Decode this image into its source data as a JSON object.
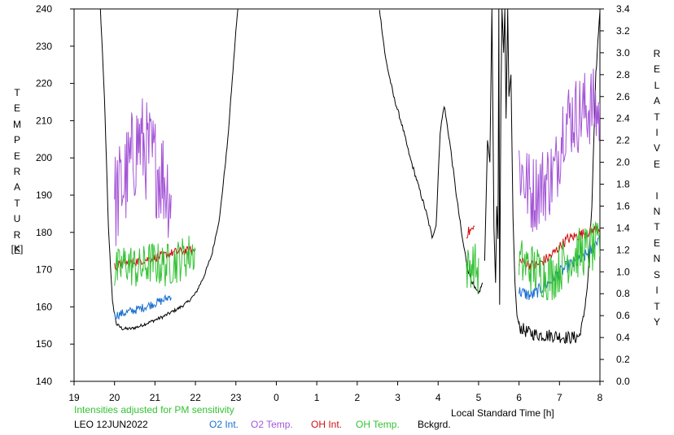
{
  "chart_data": {
    "type": "line",
    "xlabel": "Local Standard Time [h]",
    "ylabel_left": "TEMPERATURE",
    "ylabel_left_unit": "[K]",
    "ylabel_right": "RELATIVE INTENSITY",
    "x_ticks": [
      "19",
      "20",
      "21",
      "22",
      "23",
      "0",
      "1",
      "2",
      "3",
      "4",
      "5",
      "6",
      "7",
      "8"
    ],
    "y_left_ticks": [
      "140",
      "150",
      "160",
      "170",
      "180",
      "190",
      "200",
      "210",
      "220",
      "230",
      "240"
    ],
    "y_right_ticks": [
      "0.0",
      "0.2",
      "0.4",
      "0.6",
      "0.8",
      "1.0",
      "1.2",
      "1.4",
      "1.6",
      "1.8",
      "2.0",
      "2.2",
      "2.4",
      "2.6",
      "2.8",
      "3.0",
      "3.2",
      "3.4"
    ],
    "xlim": [
      19,
      32
    ],
    "ylim_left": [
      140,
      240
    ],
    "ylim_right": [
      0,
      3.4
    ],
    "grid": false,
    "notes": {
      "sensitivity_note": "Intensities adjusted for PM sensitivity",
      "site_date": "LEO 12JUN2022"
    },
    "legend": [
      {
        "label": "O2 Int.",
        "color": "#1a6fd0"
      },
      {
        "label": "O2 Temp.",
        "color": "#a455d6"
      },
      {
        "label": "OH Int.",
        "color": "#d01010"
      },
      {
        "label": "OH Temp.",
        "color": "#33c233"
      },
      {
        "label": "Bckgrd.",
        "color": "#000000"
      }
    ],
    "series": [
      {
        "key": "bckgrd",
        "axis": "right",
        "color": "#000000",
        "noise": 0.015,
        "x": [
          19.65,
          19.75,
          19.85,
          19.95,
          20.05,
          20.2,
          20.4,
          20.6,
          20.8,
          21.0,
          21.2,
          21.4,
          21.6,
          21.8,
          22.0,
          22.2,
          22.4,
          22.6,
          22.8,
          23.0,
          23.05
        ],
        "y": [
          3.4,
          2.6,
          1.4,
          0.72,
          0.52,
          0.48,
          0.48,
          0.5,
          0.53,
          0.56,
          0.59,
          0.63,
          0.67,
          0.72,
          0.8,
          0.95,
          1.15,
          1.5,
          2.2,
          3.2,
          3.4
        ]
      },
      {
        "key": "bckgrd",
        "axis": "right",
        "color": "#000000",
        "noise": 0.02,
        "x": [
          26.55,
          26.7,
          26.9,
          27.1,
          27.3,
          27.5,
          27.7,
          27.85,
          27.95,
          28.05,
          28.15,
          28.3,
          28.45,
          28.6,
          28.75,
          28.9,
          29.0,
          29.1
        ],
        "y": [
          3.4,
          2.95,
          2.6,
          2.35,
          2.05,
          1.8,
          1.55,
          1.32,
          1.42,
          2.28,
          2.52,
          2.15,
          1.7,
          1.3,
          1.0,
          0.85,
          0.8,
          0.9
        ]
      },
      {
        "key": "bckgrd",
        "axis": "right",
        "color": "#000000",
        "noise": 0.0,
        "x": [
          29.15,
          29.22,
          29.28,
          29.33,
          29.38,
          29.42,
          29.45,
          29.48,
          29.5,
          29.52,
          29.55,
          29.58,
          29.62,
          29.65,
          29.68,
          29.72,
          29.75,
          29.8,
          29.85,
          29.9,
          29.95,
          30.0
        ],
        "y": [
          1.1,
          2.2,
          2.0,
          3.4,
          1.4,
          0.9,
          1.6,
          1.3,
          3.4,
          0.7,
          2.5,
          3.4,
          3.0,
          3.4,
          2.4,
          3.4,
          2.6,
          2.8,
          1.5,
          0.9,
          0.6,
          0.52
        ]
      },
      {
        "key": "bckgrd",
        "axis": "right",
        "color": "#000000",
        "noise": 0.06,
        "x": [
          30.0,
          30.2,
          30.4,
          30.6,
          30.8,
          31.0,
          31.2,
          31.4,
          31.5
        ],
        "y": [
          0.5,
          0.45,
          0.43,
          0.42,
          0.42,
          0.41,
          0.4,
          0.4,
          0.42
        ]
      },
      {
        "key": "bckgrd",
        "axis": "right",
        "color": "#000000",
        "noise": 0.03,
        "x": [
          31.5,
          31.6,
          31.7,
          31.8,
          31.9,
          32.0
        ],
        "y": [
          0.42,
          0.6,
          0.9,
          1.6,
          2.8,
          3.4
        ]
      },
      {
        "key": "o2_int",
        "axis": "right",
        "color": "#1a6fd0",
        "noise": 0.04,
        "x": [
          20.0,
          20.3,
          20.6,
          20.9,
          21.2,
          21.4
        ],
        "y": [
          0.6,
          0.63,
          0.66,
          0.7,
          0.74,
          0.78
        ]
      },
      {
        "key": "o2_int",
        "axis": "right",
        "color": "#1a6fd0",
        "noise": 0.06,
        "x": [
          30.0,
          30.3,
          30.6,
          30.9,
          31.2,
          31.5,
          31.8,
          32.0
        ],
        "y": [
          0.82,
          0.78,
          0.86,
          0.96,
          1.05,
          1.1,
          1.2,
          1.34
        ]
      },
      {
        "key": "o2_temp",
        "axis": "left",
        "color": "#a455d6",
        "noise": 14,
        "x": [
          20.0,
          20.3,
          20.6,
          20.9,
          21.2,
          21.4
        ],
        "y": [
          188,
          195,
          205,
          200,
          195,
          190
        ]
      },
      {
        "key": "o2_temp",
        "axis": "left",
        "color": "#a455d6",
        "noise": 11,
        "x": [
          30.0,
          30.3,
          30.6,
          30.9,
          31.1,
          31.5,
          31.8,
          32.0
        ],
        "y": [
          198,
          190,
          193,
          196,
          210,
          212,
          214,
          211
        ]
      },
      {
        "key": "oh_int",
        "axis": "right",
        "color": "#d01010",
        "noise": 0.04,
        "x": [
          20.0,
          20.3,
          20.6,
          20.9,
          21.2,
          21.5,
          22.0
        ],
        "y": [
          1.05,
          1.08,
          1.1,
          1.12,
          1.15,
          1.18,
          1.2
        ]
      },
      {
        "key": "oh_int",
        "axis": "right",
        "color": "#d01010",
        "noise": 0.05,
        "x": [
          28.7,
          28.9
        ],
        "y": [
          1.35,
          1.4
        ]
      },
      {
        "key": "oh_int",
        "axis": "right",
        "color": "#d01010",
        "noise": 0.05,
        "x": [
          30.0,
          30.4,
          30.8,
          31.2,
          31.6,
          32.0
        ],
        "y": [
          1.1,
          1.05,
          1.15,
          1.3,
          1.35,
          1.4
        ]
      },
      {
        "key": "oh_temp",
        "axis": "left",
        "color": "#33c233",
        "noise": 6,
        "x": [
          20.0,
          20.3,
          20.6,
          20.9,
          21.2,
          21.5,
          22.0
        ],
        "y": [
          169,
          172,
          170,
          172,
          171,
          172,
          175
        ]
      },
      {
        "key": "oh_temp",
        "axis": "left",
        "color": "#33c233",
        "noise": 6,
        "x": [
          28.7,
          28.9,
          29.0
        ],
        "y": [
          170,
          172,
          168
        ]
      },
      {
        "key": "oh_temp",
        "axis": "left",
        "color": "#33c233",
        "noise": 7,
        "x": [
          30.0,
          30.4,
          30.8,
          31.2,
          31.6,
          32.0
        ],
        "y": [
          172,
          170,
          168,
          173,
          175,
          176
        ]
      }
    ]
  }
}
